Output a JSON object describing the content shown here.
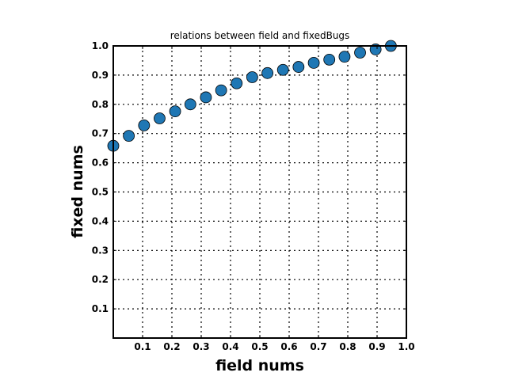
{
  "chart_data": {
    "type": "scatter",
    "title": "relations between field and fixedBugs",
    "xlabel": "field nums",
    "ylabel": "fixed nums",
    "xlim": [
      0,
      1.0
    ],
    "ylim": [
      0,
      1.0
    ],
    "xticks": [
      "0.1",
      "0.2",
      "0.3",
      "0.4",
      "0.5",
      "0.6",
      "0.7",
      "0.8",
      "0.9",
      "1.0"
    ],
    "yticks": [
      "0.1",
      "0.2",
      "0.3",
      "0.4",
      "0.5",
      "0.6",
      "0.7",
      "0.8",
      "0.9",
      "1.0"
    ],
    "grid": true,
    "marker_color": "#1f77b4",
    "points": {
      "x": [
        0.0,
        0.053,
        0.105,
        0.158,
        0.211,
        0.263,
        0.316,
        0.368,
        0.421,
        0.474,
        0.526,
        0.579,
        0.632,
        0.684,
        0.737,
        0.789,
        0.842,
        0.895,
        0.947
      ],
      "y": [
        0.658,
        0.692,
        0.728,
        0.752,
        0.776,
        0.8,
        0.824,
        0.848,
        0.872,
        0.893,
        0.907,
        0.918,
        0.928,
        0.942,
        0.953,
        0.963,
        0.977,
        0.988,
        1.0
      ]
    }
  }
}
